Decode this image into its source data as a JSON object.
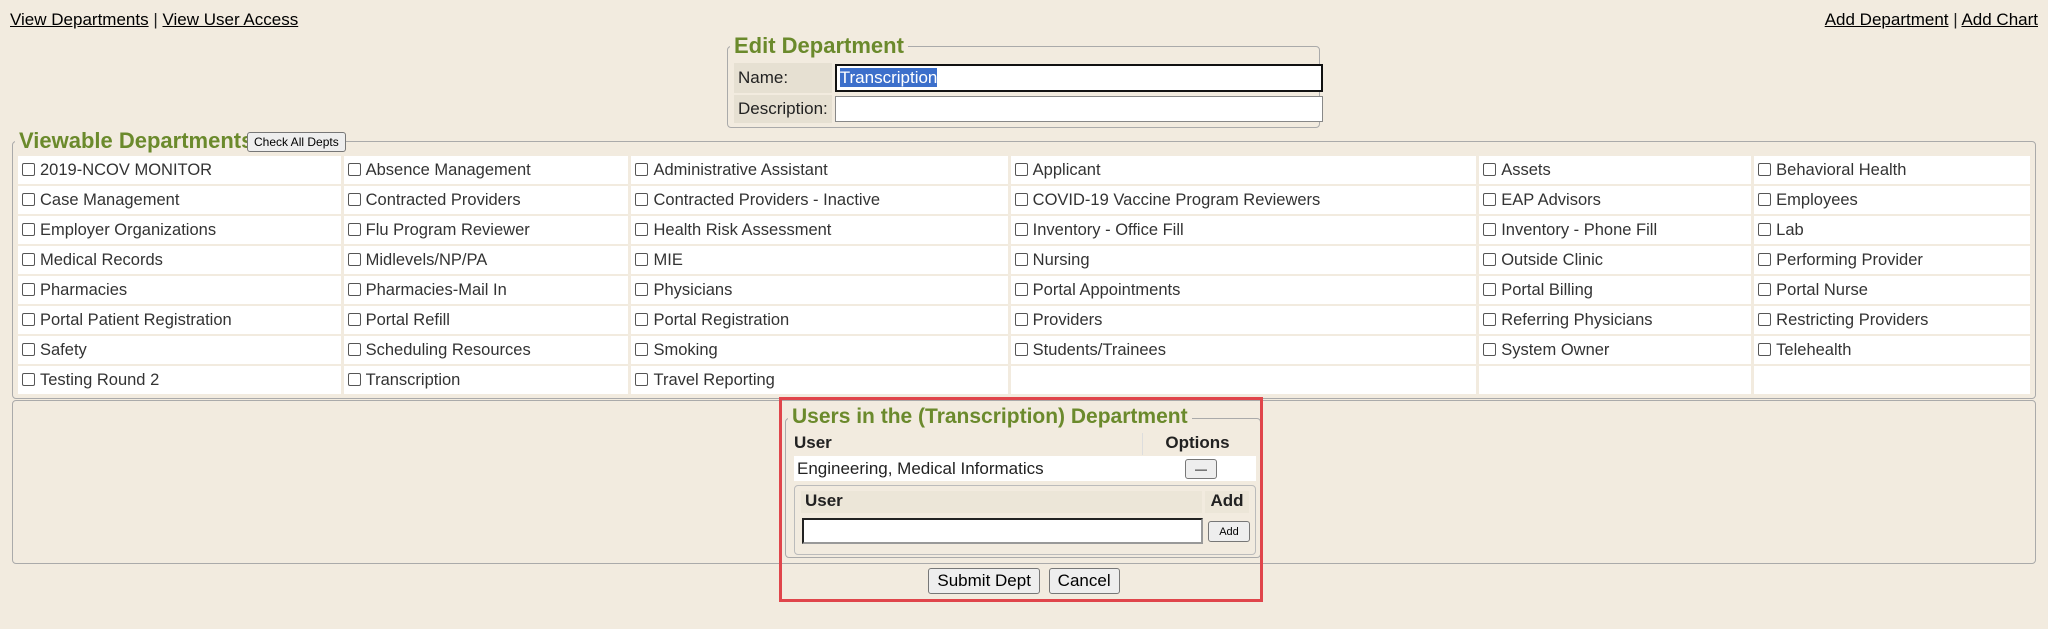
{
  "nav": {
    "left": [
      "View Departments",
      "View User Access"
    ],
    "right": [
      "Add Department",
      "Add Chart"
    ],
    "sep": "|"
  },
  "edit": {
    "title": "Edit Department",
    "name_label": "Name:",
    "name_value": "Transcription",
    "desc_label": "Description:",
    "desc_value": ""
  },
  "viewable": {
    "title": "Viewable Departments",
    "check_all": "Check All Depts",
    "rows": [
      [
        "2019-NCOV MONITOR",
        "Absence Management",
        "Administrative Assistant",
        "Applicant",
        "Assets",
        "Behavioral Health"
      ],
      [
        "Case Management",
        "Contracted Providers",
        "Contracted Providers - Inactive",
        "COVID-19 Vaccine Program Reviewers",
        "EAP Advisors",
        "Employees"
      ],
      [
        "Employer Organizations",
        "Flu Program Reviewer",
        "Health Risk Assessment",
        "Inventory - Office Fill",
        "Inventory - Phone Fill",
        "Lab"
      ],
      [
        "Medical Records",
        "Midlevels/NP/PA",
        "MIE",
        "Nursing",
        "Outside Clinic",
        "Performing Provider"
      ],
      [
        "Pharmacies",
        "Pharmacies-Mail In",
        "Physicians",
        "Portal Appointments",
        "Portal Billing",
        "Portal Nurse"
      ],
      [
        "Portal Patient Registration",
        "Portal Refill",
        "Portal Registration",
        "Providers",
        "Referring Physicians",
        "Restricting Providers"
      ],
      [
        "Safety",
        "Scheduling Resources",
        "Smoking",
        "Students/Trainees",
        "System Owner",
        "Telehealth"
      ],
      [
        "Testing Round 2",
        "Transcription",
        "Travel Reporting",
        "",
        "",
        ""
      ]
    ]
  },
  "users": {
    "title": "Users in the (Transcription) Department",
    "col_user": "User",
    "col_options": "Options",
    "rows": [
      {
        "user": "Engineering, Medical Informatics",
        "remove": "—"
      }
    ],
    "add": {
      "col_user": "User",
      "col_add": "Add",
      "input_value": "",
      "button": "Add"
    }
  },
  "buttons": {
    "submit": "Submit Dept",
    "cancel": "Cancel"
  },
  "colors": {
    "accent": "#6b8a2c",
    "highlight": "#e0454b",
    "background": "#f2ebdf"
  }
}
